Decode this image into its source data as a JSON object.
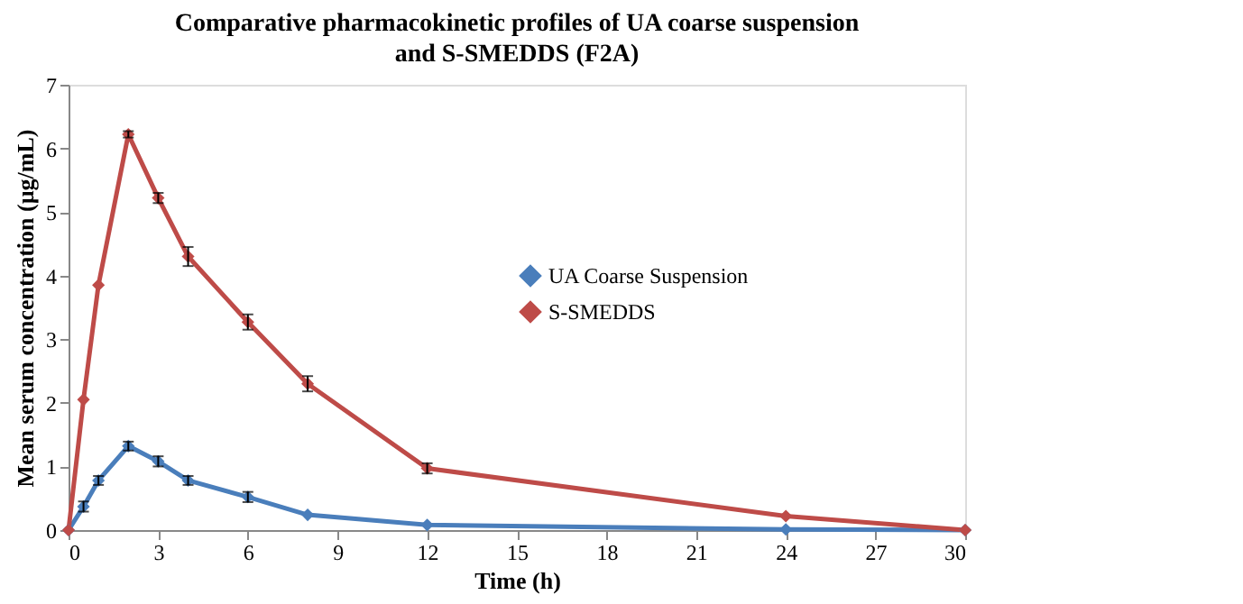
{
  "chart_data": {
    "type": "line",
    "title": "Comparative pharmacokinetic profiles of UA coarse suspension and S-SMEDDS (F2A)",
    "xlabel": "Time (h)",
    "ylabel": "Mean serum concentration (µg/mL)",
    "x": [
      0,
      0.5,
      1,
      2,
      3,
      4,
      6,
      8,
      12,
      24,
      30
    ],
    "series": [
      {
        "name": "UA Coarse Suspension",
        "color": "#4a7ebb",
        "values": [
          0,
          0.37,
          0.78,
          1.32,
          1.08,
          0.78,
          0.52,
          0.24,
          0.08,
          0.01,
          0
        ],
        "errors": [
          null,
          0.08,
          0.07,
          0.07,
          0.08,
          0.07,
          0.08,
          null,
          null,
          null,
          null
        ]
      },
      {
        "name": "S-SMEDDS",
        "color": "#be4b48",
        "values": [
          0,
          2.05,
          3.85,
          6.22,
          5.22,
          4.3,
          3.27,
          2.3,
          0.97,
          0.22,
          0
        ],
        "errors": [
          null,
          null,
          null,
          0.05,
          0.08,
          0.15,
          0.12,
          0.12,
          0.08,
          null,
          null
        ]
      }
    ],
    "xlim": [
      0,
      30
    ],
    "xticks": [
      0,
      3,
      6,
      9,
      12,
      15,
      18,
      21,
      24,
      27,
      30
    ],
    "ylim": [
      0,
      7
    ],
    "yticks": [
      0,
      1,
      2,
      3,
      4,
      5,
      6,
      7
    ],
    "grid": false,
    "legend": "right",
    "marker": "diamond",
    "line_style": "solid"
  }
}
